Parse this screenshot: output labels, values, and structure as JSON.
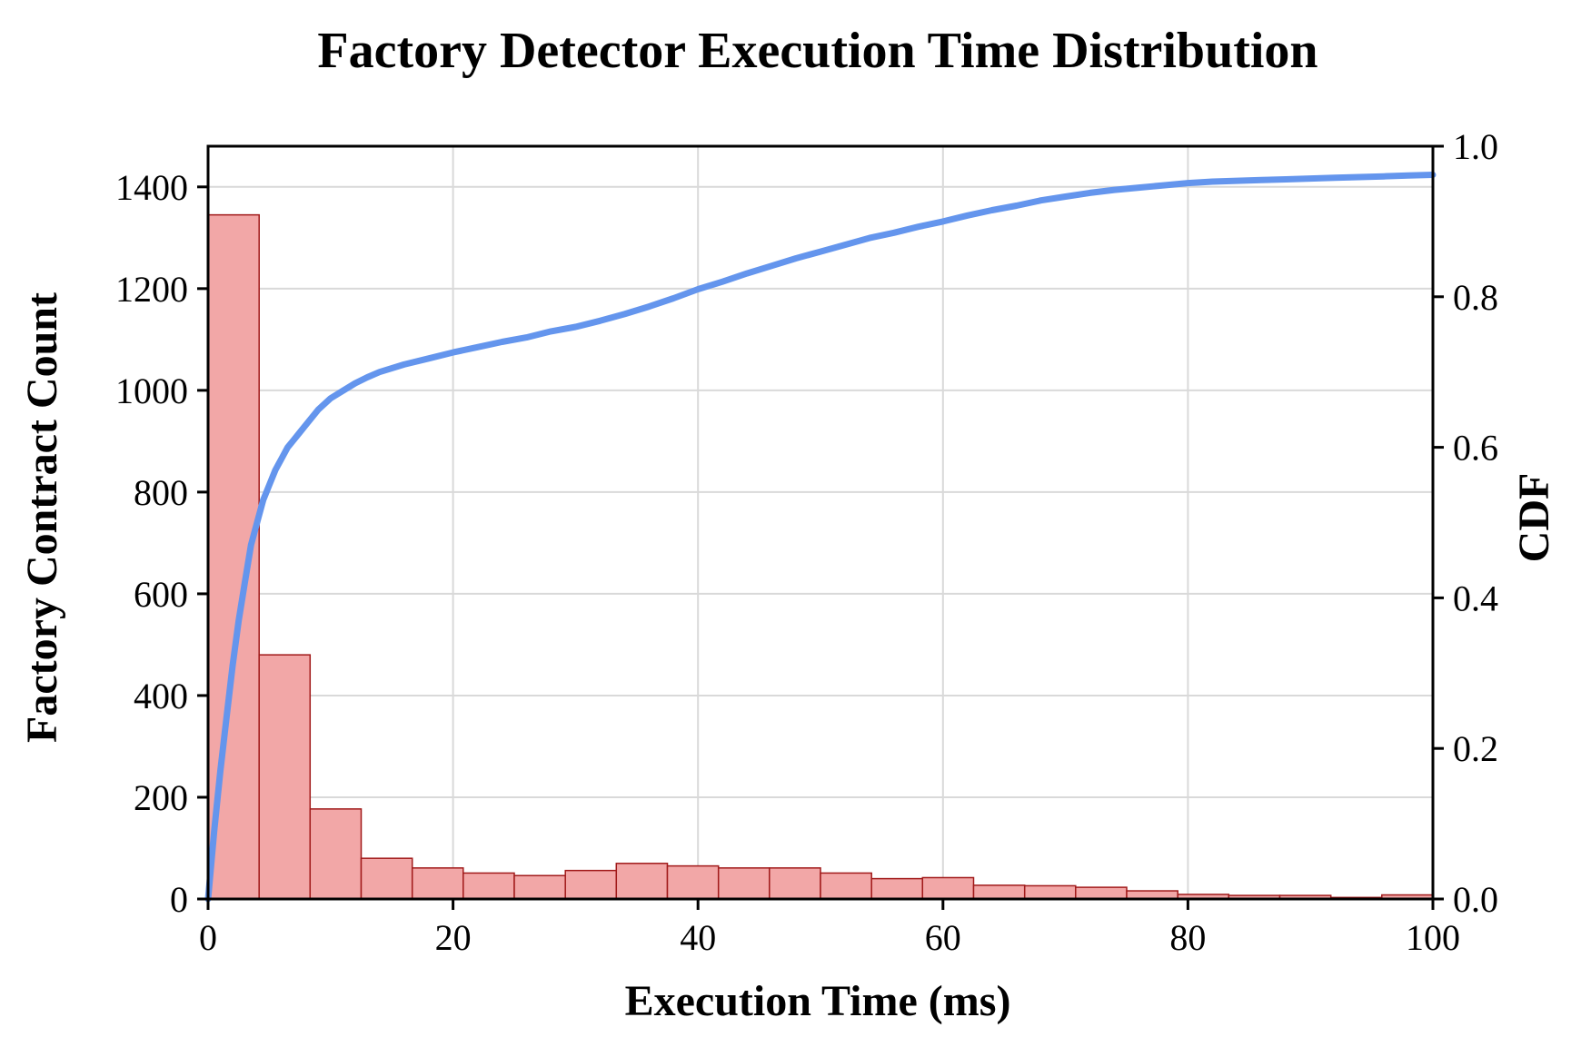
{
  "chart_data": {
    "type": "bar",
    "title": "Factory Detector Execution Time Distribution",
    "xlabel": "Execution Time (ms)",
    "ylabel": "Factory Contract Count",
    "y2label": "CDF",
    "xlim": [
      0,
      100
    ],
    "ylim": [
      0,
      1480
    ],
    "y2lim": [
      0,
      1.0
    ],
    "x_ticks": [
      0,
      20,
      40,
      60,
      80,
      100
    ],
    "y_ticks": [
      0,
      200,
      400,
      600,
      800,
      1000,
      1200,
      1400
    ],
    "y2_ticks": [
      "0.0",
      "0.2",
      "0.4",
      "0.6",
      "0.8",
      "1.0"
    ],
    "grid": true,
    "series": [
      {
        "type": "histogram",
        "color": "#f2a7a7",
        "edgecolor": "#a11a1a",
        "bin_edges": [
          0,
          4.17,
          8.33,
          12.5,
          16.67,
          20.83,
          25,
          29.17,
          33.33,
          37.5,
          41.67,
          45.83,
          50,
          54.17,
          58.33,
          62.5,
          66.67,
          70.83,
          75,
          79.17,
          83.33,
          87.5,
          91.67,
          95.83,
          100
        ],
        "counts": [
          1345,
          480,
          177,
          80,
          61,
          51,
          46,
          56,
          70,
          65,
          61,
          61,
          51,
          40,
          42,
          27,
          26,
          23,
          16,
          9,
          7,
          7,
          3,
          8
        ]
      },
      {
        "type": "line",
        "axis": "right",
        "color": "#6495ed",
        "x": [
          0,
          0.5,
          1,
          1.5,
          2,
          2.5,
          3,
          3.5,
          4,
          4.5,
          5,
          5.5,
          6,
          6.5,
          7,
          7.5,
          8,
          9,
          10,
          11,
          12,
          13,
          14,
          16,
          18,
          20,
          22,
          24,
          26,
          28,
          30,
          32,
          34,
          36,
          38,
          40,
          42,
          44,
          46,
          48,
          50,
          52,
          54,
          56,
          58,
          60,
          62,
          64,
          66,
          68,
          70,
          72,
          74,
          76,
          78,
          80,
          82,
          84,
          86,
          88,
          90,
          92,
          94,
          96,
          98,
          100
        ],
        "y": [
          0.0,
          0.09,
          0.17,
          0.24,
          0.31,
          0.37,
          0.42,
          0.47,
          0.5,
          0.53,
          0.55,
          0.57,
          0.585,
          0.6,
          0.61,
          0.62,
          0.63,
          0.65,
          0.665,
          0.675,
          0.685,
          0.693,
          0.7,
          0.71,
          0.718,
          0.726,
          0.733,
          0.74,
          0.746,
          0.754,
          0.76,
          0.768,
          0.777,
          0.787,
          0.798,
          0.81,
          0.82,
          0.831,
          0.841,
          0.851,
          0.86,
          0.869,
          0.878,
          0.885,
          0.893,
          0.9,
          0.908,
          0.915,
          0.921,
          0.928,
          0.933,
          0.938,
          0.942,
          0.945,
          0.948,
          0.951,
          0.953,
          0.954,
          0.955,
          0.956,
          0.957,
          0.958,
          0.959,
          0.96,
          0.961,
          0.962
        ]
      }
    ]
  }
}
